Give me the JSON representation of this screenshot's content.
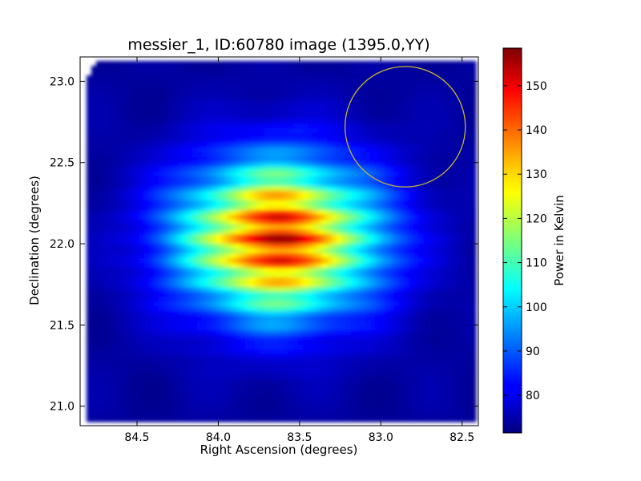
{
  "chart_data": {
    "type": "heatmap",
    "title": "messier_1, ID:60780 image (1395.0,YY)",
    "xlabel": "Right Ascension (degrees)",
    "ylabel": "Declination (degrees)",
    "xlim": [
      84.85,
      82.4
    ],
    "ylim": [
      20.88,
      23.15
    ],
    "x_ticks": [
      "84.5",
      "84.0",
      "83.5",
      "83.0",
      "82.5"
    ],
    "x_tick_values": [
      84.5,
      84.0,
      83.5,
      83.0,
      82.5
    ],
    "y_ticks": [
      "21.0",
      "21.5",
      "22.0",
      "22.5",
      "23.0"
    ],
    "y_tick_values": [
      21.0,
      21.5,
      22.0,
      22.5,
      23.0
    ],
    "colorbar": {
      "label": "Power in Kelvin",
      "min": 71.5,
      "max": 158.5,
      "ticks": [
        "80",
        "90",
        "100",
        "110",
        "120",
        "130",
        "140",
        "150"
      ],
      "tick_values": [
        80,
        90,
        100,
        110,
        120,
        130,
        140,
        150
      ],
      "colormap": "jet"
    },
    "source": {
      "ra_center": 83.63,
      "dec_center": 22.03,
      "peak_kelvin": 155,
      "background_kelvin": 74
    },
    "circle": {
      "ra_center": 82.85,
      "dec_center": 22.72,
      "radius_deg": 0.37,
      "color": "#c8b432"
    },
    "grid": false
  }
}
